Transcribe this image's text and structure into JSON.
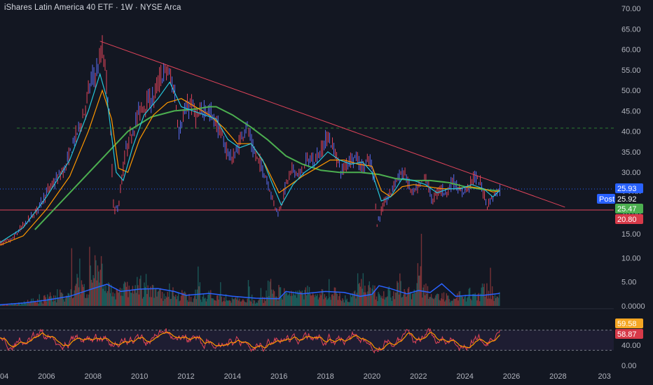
{
  "title": "iShares Latin America 40 ETF · 1W · NYSE Arca",
  "colors": {
    "background": "#131722",
    "candle_up": "#5b6cf0",
    "candle_down": "#e0445a",
    "ema_fast": "#26c6da",
    "ema_mid": "#ff9800",
    "sma_slow": "#4caf50",
    "trendline": "#e0445a",
    "support": "#e0445a",
    "dashed_level": "#2e7d32",
    "volume_ma": "#2962ff",
    "rsi_line": "#e0445a",
    "rsi_ma": "#ff9800"
  },
  "chart_data": [
    {
      "type": "line",
      "name": "price",
      "yticks": [
        "70.00",
        "65.00",
        "60.00",
        "55.00",
        "50.00",
        "45.00",
        "40.00",
        "35.00",
        "30.00",
        "25.00",
        "20.00",
        "15.00"
      ],
      "ylim": [
        15,
        70
      ],
      "xlim": [
        2004.0,
        2030.4
      ],
      "xticks": [
        "04",
        "2006",
        "2008",
        "2010",
        "2012",
        "2014",
        "2016",
        "2018",
        "2020",
        "2022",
        "2024",
        "2026",
        "2028",
        "203"
      ],
      "price": {
        "x": [
          2003.9,
          2004.5,
          2005.0,
          2005.5,
          2006.0,
          2006.4,
          2006.8,
          2007.2,
          2007.6,
          2007.9,
          2008.2,
          2008.4,
          2008.6,
          2008.75,
          2008.9,
          2009.1,
          2009.4,
          2009.7,
          2010.0,
          2010.3,
          2010.6,
          2010.9,
          2011.2,
          2011.5,
          2011.7,
          2011.9,
          2012.2,
          2012.5,
          2012.8,
          2013.1,
          2013.4,
          2013.7,
          2014.0,
          2014.3,
          2014.6,
          2014.9,
          2015.2,
          2015.5,
          2015.8,
          2016.0,
          2016.3,
          2016.6,
          2016.9,
          2017.2,
          2017.5,
          2017.8,
          2018.1,
          2018.4,
          2018.7,
          2019.0,
          2019.3,
          2019.6,
          2019.9,
          2020.1,
          2020.2,
          2020.5,
          2020.8,
          2021.1,
          2021.4,
          2021.7,
          2022.0,
          2022.3,
          2022.6,
          2022.9,
          2023.2,
          2023.5,
          2023.8,
          2024.1,
          2024.4,
          2024.7,
          2024.95,
          2025.2,
          2025.5
        ],
        "y": [
          12.5,
          13.5,
          17.0,
          20.0,
          25.0,
          28.0,
          31.0,
          38.0,
          44.0,
          52.0,
          55.0,
          60.0,
          52.0,
          40.0,
          20.0,
          22.0,
          35.0,
          40.0,
          45.0,
          47.0,
          48.0,
          53.0,
          55.0,
          50.0,
          40.0,
          44.0,
          47.0,
          43.0,
          46.0,
          44.0,
          41.0,
          36.0,
          33.0,
          37.0,
          42.0,
          35.0,
          32.0,
          28.0,
          22.0,
          20.0,
          27.0,
          31.0,
          29.0,
          33.0,
          33.0,
          35.0,
          39.0,
          35.0,
          30.0,
          33.0,
          34.0,
          31.0,
          33.0,
          29.0,
          17.0,
          22.0,
          25.0,
          29.0,
          30.0,
          25.0,
          26.0,
          29.0,
          23.0,
          26.0,
          25.0,
          28.0,
          25.0,
          26.0,
          29.0,
          27.0,
          22.0,
          24.0,
          25.93
        ]
      },
      "ema_fast": {
        "x": [
          2003.9,
          2005.0,
          2006.0,
          2007.0,
          2007.8,
          2008.3,
          2008.6,
          2009.0,
          2009.3,
          2009.7,
          2010.2,
          2010.8,
          2011.3,
          2011.8,
          2012.3,
          2012.8,
          2013.3,
          2013.8,
          2014.3,
          2014.8,
          2015.3,
          2015.8,
          2016.1,
          2016.6,
          2017.1,
          2017.6,
          2018.1,
          2018.6,
          2019.1,
          2019.6,
          2020.0,
          2020.4,
          2020.8,
          2021.3,
          2021.8,
          2022.3,
          2022.8,
          2023.3,
          2023.8,
          2024.3,
          2024.8,
          2025.2,
          2025.5
        ],
        "y": [
          12.5,
          16.5,
          24.0,
          33.0,
          45.0,
          54.0,
          48.0,
          30.0,
          28.0,
          36.0,
          44.0,
          48.0,
          52.0,
          46.0,
          45.0,
          44.0,
          43.0,
          38.0,
          36.0,
          37.0,
          33.0,
          26.0,
          22.0,
          27.0,
          30.0,
          32.0,
          35.0,
          33.0,
          32.0,
          32.5,
          30.0,
          23.0,
          24.0,
          28.5,
          28.0,
          27.0,
          25.0,
          26.0,
          26.0,
          27.0,
          26.0,
          24.0,
          25.6
        ]
      },
      "ema_mid": {
        "x": [
          2003.9,
          2005.0,
          2006.0,
          2007.0,
          2007.8,
          2008.4,
          2008.8,
          2009.1,
          2009.5,
          2010.0,
          2010.6,
          2011.2,
          2011.8,
          2012.4,
          2013.0,
          2013.6,
          2014.2,
          2014.8,
          2015.4,
          2016.0,
          2016.5,
          2017.0,
          2017.6,
          2018.2,
          2018.8,
          2019.4,
          2020.0,
          2020.4,
          2020.8,
          2021.3,
          2021.8,
          2022.4,
          2023.0,
          2023.6,
          2024.2,
          2024.8,
          2025.2,
          2025.5
        ],
        "y": [
          12.0,
          14.5,
          21.0,
          29.0,
          40.0,
          50.0,
          43.0,
          31.0,
          30.0,
          38.0,
          44.0,
          47.0,
          48.0,
          46.0,
          44.0,
          41.0,
          37.0,
          37.0,
          32.0,
          25.0,
          27.0,
          29.0,
          31.0,
          33.0,
          33.0,
          32.0,
          31.5,
          25.5,
          24.0,
          26.5,
          27.0,
          26.5,
          26.0,
          26.0,
          26.5,
          26.0,
          25.2,
          25.5
        ]
      },
      "sma_slow": {
        "x": [
          2005.5,
          2006.5,
          2007.5,
          2008.5,
          2009.5,
          2010.5,
          2011.5,
          2012.5,
          2013.0,
          2013.3,
          2014.0,
          2014.8,
          2015.5,
          2016.3,
          2017.0,
          2017.8,
          2018.6,
          2019.5,
          2020.3,
          2021.0,
          2021.8,
          2022.5,
          2023.3,
          2024.0,
          2024.8,
          2025.5
        ],
        "y": [
          16.0,
          22.0,
          28.0,
          34.0,
          40.0,
          43.5,
          45.0,
          45.5,
          46.0,
          46.0,
          44.0,
          41.0,
          38.0,
          34.0,
          32.0,
          30.5,
          30.0,
          30.0,
          29.5,
          28.5,
          28.0,
          28.0,
          27.5,
          26.5,
          25.8,
          25.47
        ]
      },
      "trendline": {
        "x": [
          2008.3,
          2028.3
        ],
        "y": [
          62.0,
          21.5
        ]
      },
      "support_level": 20.8,
      "dashed_level": 40.8,
      "dotted_level": 25.93
    },
    {
      "type": "bar",
      "name": "volume",
      "yticks": [
        "10.00",
        "5.00",
        "0.0000"
      ],
      "ylim": [
        0,
        15
      ],
      "ma": {
        "x": [
          2003.9,
          2005.0,
          2006.0,
          2007.0,
          2008.0,
          2008.6,
          2009.2,
          2010.0,
          2010.8,
          2011.5,
          2012.0,
          2013.0,
          2014.0,
          2015.0,
          2016.0,
          2016.3,
          2017.0,
          2018.0,
          2018.8,
          2019.5,
          2020.0,
          2020.3,
          2020.8,
          2021.5,
          2022.0,
          2022.5,
          2023.0,
          2023.6,
          2024.2,
          2024.8,
          2025.5
        ],
        "y": [
          0.2,
          0.6,
          1.2,
          2.0,
          3.6,
          4.5,
          3.0,
          3.5,
          3.6,
          3.0,
          2.2,
          2.6,
          2.0,
          1.6,
          1.5,
          3.0,
          2.5,
          3.0,
          2.8,
          2.0,
          2.4,
          4.2,
          3.6,
          2.5,
          3.2,
          2.8,
          4.6,
          2.0,
          2.2,
          2.2,
          2.6
        ]
      },
      "bars": [
        0.2,
        0.3,
        0.5,
        0.6,
        0.8,
        1.5,
        1.2,
        2.4,
        2.0,
        3.5,
        2.4,
        4.4,
        5.6,
        4.2,
        10.2,
        7.8,
        4.0,
        5.1,
        3.2,
        4.9,
        3.6,
        5.3,
        3.9,
        4.4,
        3.5,
        2.6,
        3.8,
        2.3,
        2.8,
        2.1,
        3.4,
        2.2,
        3.1,
        1.9,
        2.0,
        1.5,
        1.8,
        1.2,
        2.1,
        1.0,
        1.6,
        4.6,
        2.8,
        3.6,
        2.6,
        3.4,
        3.0,
        4.2,
        2.4,
        3.6,
        2.1,
        3.2,
        2.2,
        1.8,
        2.6,
        5.6,
        4.4,
        3.6,
        2.4,
        3.8,
        2.6,
        4.2,
        3.4,
        2.8,
        7.2,
        4.4,
        3.0,
        2.1,
        2.4,
        1.8,
        2.7,
        2.2,
        3.1,
        2.4,
        4.0,
        3.3,
        2.4
      ]
    },
    {
      "type": "line",
      "name": "rsi",
      "yticks": [
        "40.00",
        "0.00"
      ],
      "ylim": [
        0,
        100
      ],
      "upper_level": 70,
      "lower_level": 30,
      "rsi_value": 58.87,
      "rsi_ma_value": 59.58
    }
  ],
  "badges": {
    "last_price": "25.93",
    "post_label": "Post",
    "post_price": "25.92",
    "sma_value": "25.47",
    "support_value": "20.80",
    "rsi_ma": "59.58",
    "rsi": "58.87"
  }
}
